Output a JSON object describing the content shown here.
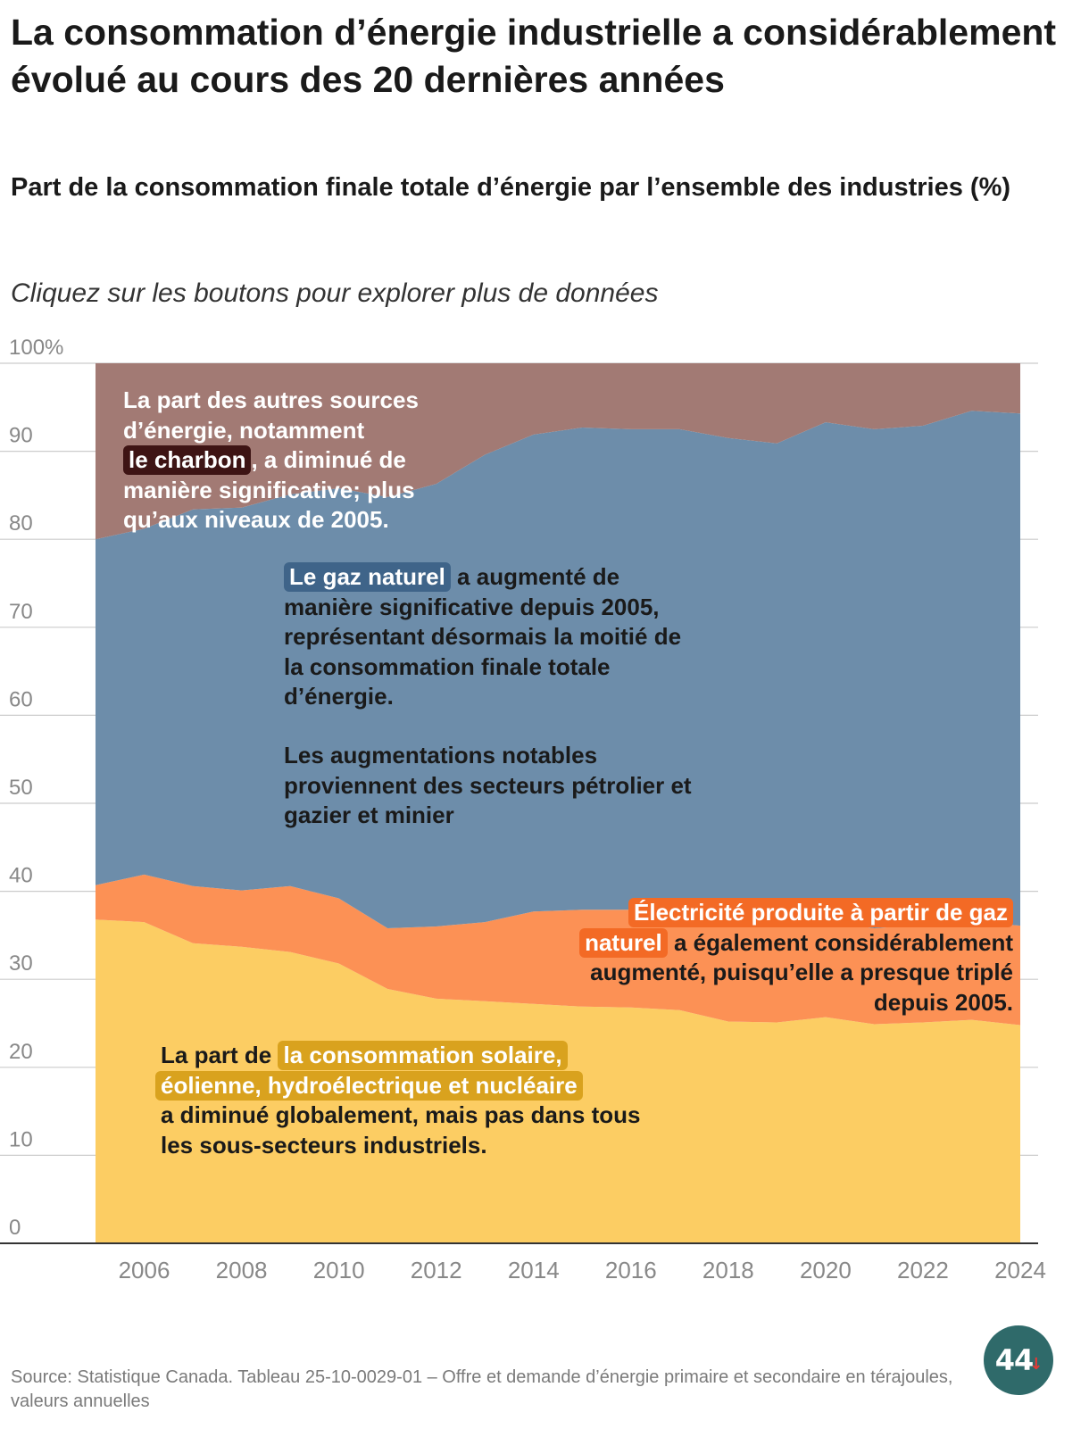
{
  "title": "La consommation d’énergie industrielle a considérablement évolué au cours des 20 dernières années",
  "subtitle": "Part de la consommation finale totale d’énergie par l’ensemble des industries (%)",
  "instruction": "Cliquez sur les boutons pour explorer plus de données",
  "annotations": {
    "coal": {
      "before": "La part des autres sources d’énergie, notamment",
      "highlight": "le charbon",
      "after": ", a diminué de manière significative; plus qu’aux niveaux de 2005."
    },
    "gas": {
      "highlight": "Le gaz naturel",
      "after": " a augmenté de manière significative depuis 2005, représentant désormais la moitié de la consommation finale totale d’énergie.",
      "para2": "Les augmentations notables proviennent des secteurs pétrolier et gazier et minier"
    },
    "electricity": {
      "highlight1": "Électricité produite à partir de gaz",
      "highlight2": "naturel",
      "after": " a également considérablement augmenté, puisqu’elle a presque triplé depuis 2005."
    },
    "renewables": {
      "before": "La part de",
      "highlight1": "la consommation solaire,",
      "highlight2": "éolienne, hydroélectrique et nucléaire",
      "after": " a diminué globalement, mais pas dans tous les sous-secteurs industriels."
    }
  },
  "source": "Source: Statistique Canada. Tableau 25-10-0029-01 – Offre et demande d’énergie primaire et secondaire en térajoules, valeurs annuelles",
  "logo": {
    "text": "44",
    "arrow": "↓"
  },
  "colors": {
    "renewables": "#fccd63",
    "gas_electricity": "#fc9155",
    "natural_gas": "#6d8daa",
    "other": "#a27a74",
    "gridline": "#cccccc",
    "axis": "#333333",
    "tick_label": "#888888"
  },
  "chart_data": {
    "type": "area",
    "stacked": true,
    "title": "Part de la consommation finale totale d’énergie par l’ensemble des industries (%)",
    "xlabel": "",
    "ylabel": "",
    "ylim": [
      0,
      100
    ],
    "xlim": [
      2005,
      2024
    ],
    "y_ticks": [
      "0",
      "10",
      "20",
      "30",
      "40",
      "50",
      "60",
      "70",
      "80",
      "90",
      "100%"
    ],
    "x_ticks": [
      "2006",
      "2008",
      "2010",
      "2012",
      "2014",
      "2016",
      "2018",
      "2020",
      "2022",
      "2024"
    ],
    "x": [
      2005,
      2006,
      2007,
      2008,
      2009,
      2010,
      2011,
      2012,
      2013,
      2014,
      2015,
      2016,
      2017,
      2018,
      2019,
      2020,
      2021,
      2022,
      2023,
      2024
    ],
    "series": [
      {
        "name": "Solaire, éolienne, hydroélectrique et nucléaire",
        "values": [
          36.8,
          36.5,
          34.1,
          33.7,
          33.1,
          31.8,
          28.9,
          27.8,
          27.5,
          27.2,
          26.9,
          26.8,
          26.5,
          25.2,
          25.1,
          25.7,
          24.9,
          25.1,
          25.4,
          24.8
        ]
      },
      {
        "name": "Électricité produite à partir de gaz naturel",
        "values": [
          3.9,
          5.4,
          6.5,
          6.4,
          7.5,
          7.4,
          6.9,
          8.2,
          9.0,
          10.5,
          11.0,
          11.1,
          11.2,
          11.3,
          11.1,
          10.9,
          10.9,
          11.1,
          11.2,
          11.3
        ]
      },
      {
        "name": "Gaz naturel",
        "values": [
          39.3,
          39.3,
          42.8,
          43.5,
          44.5,
          46.6,
          49.0,
          50.3,
          53.1,
          54.2,
          54.8,
          54.6,
          54.8,
          55.0,
          54.7,
          56.7,
          56.7,
          56.7,
          58.0,
          58.2
        ]
      },
      {
        "name": "Autres sources d’énergie (dont le charbon)",
        "values": [
          20.0,
          18.8,
          16.6,
          16.4,
          14.9,
          14.2,
          15.2,
          13.7,
          10.4,
          8.1,
          7.3,
          7.5,
          7.5,
          8.5,
          9.1,
          6.7,
          7.5,
          7.1,
          5.4,
          5.7
        ]
      }
    ]
  }
}
